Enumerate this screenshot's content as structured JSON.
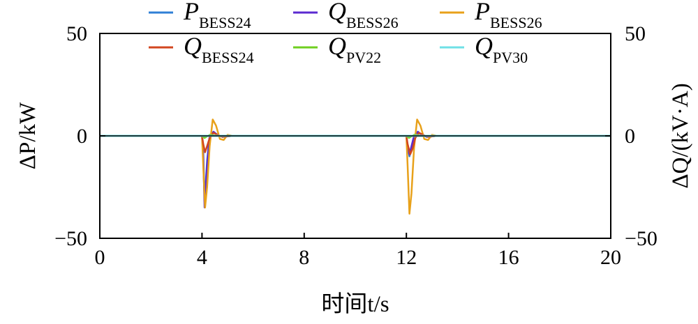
{
  "chart_data": {
    "type": "line",
    "title": "",
    "xlabel": "时间t/s",
    "ylabel_left": "ΔP/kW",
    "ylabel_right": "ΔQ/(kV·A)",
    "xlim": [
      0,
      20
    ],
    "ylim_left": [
      -50,
      50
    ],
    "ylim_right": [
      -50,
      50
    ],
    "x_ticks": [
      0,
      4,
      8,
      12,
      16,
      20
    ],
    "x_tick_labels": [
      "0",
      "4",
      "8",
      "12",
      "16",
      "20"
    ],
    "y_ticks_left": [
      -50,
      0,
      50
    ],
    "y_tick_labels_left": [
      "−50",
      "0",
      "50"
    ],
    "y_ticks_right": [
      -50,
      0,
      50
    ],
    "y_tick_labels_right": [
      "−50",
      "0",
      "50"
    ],
    "grid": false,
    "legend_position": "top",
    "series": [
      {
        "name": "P_BESS24",
        "label_main": "P",
        "label_sub": "BESS24",
        "color": "#2f7fd6",
        "points": [
          [
            0,
            0
          ],
          [
            4,
            0
          ],
          [
            4.05,
            -8
          ],
          [
            4.1,
            -32
          ],
          [
            4.2,
            -12
          ],
          [
            4.3,
            0
          ],
          [
            4.45,
            2
          ],
          [
            4.6,
            0.5
          ],
          [
            4.8,
            -0.5
          ],
          [
            5.2,
            0
          ],
          [
            12,
            0
          ],
          [
            12.05,
            -5
          ],
          [
            12.12,
            -10
          ],
          [
            12.2,
            -6
          ],
          [
            12.3,
            0
          ],
          [
            12.45,
            2
          ],
          [
            12.6,
            0.5
          ],
          [
            12.8,
            -0.5
          ],
          [
            13.2,
            0
          ],
          [
            20,
            0
          ]
        ]
      },
      {
        "name": "Q_BESS26",
        "label_main": "Q",
        "label_sub": "BESS26",
        "color": "#5b2ad0",
        "points": [
          [
            0,
            0
          ],
          [
            4,
            0
          ],
          [
            4.05,
            -10
          ],
          [
            4.1,
            -35
          ],
          [
            4.2,
            -14
          ],
          [
            4.3,
            0
          ],
          [
            4.45,
            2
          ],
          [
            4.6,
            0.5
          ],
          [
            4.8,
            -0.5
          ],
          [
            5.2,
            0
          ],
          [
            12,
            0
          ],
          [
            12.05,
            -5
          ],
          [
            12.12,
            -9
          ],
          [
            12.2,
            -5
          ],
          [
            12.3,
            0
          ],
          [
            12.45,
            2
          ],
          [
            12.6,
            0.5
          ],
          [
            12.8,
            -0.5
          ],
          [
            13.2,
            0
          ],
          [
            20,
            0
          ]
        ]
      },
      {
        "name": "P_BESS26",
        "label_main": "P",
        "label_sub": "BESS26",
        "color": "#e8a11a",
        "points": [
          [
            0,
            0
          ],
          [
            4,
            0
          ],
          [
            4.05,
            -15
          ],
          [
            4.12,
            -35
          ],
          [
            4.2,
            -25
          ],
          [
            4.3,
            -5
          ],
          [
            4.42,
            8
          ],
          [
            4.55,
            5
          ],
          [
            4.7,
            -1.5
          ],
          [
            4.85,
            -2
          ],
          [
            5,
            0.5
          ],
          [
            5.2,
            0
          ],
          [
            20,
            0
          ]
        ]
      },
      {
        "name": "Q_BESS24",
        "label_main": "Q",
        "label_sub": "BESS24",
        "color": "#d2461f",
        "points": [
          [
            0,
            0
          ],
          [
            4,
            0
          ],
          [
            4.05,
            -4
          ],
          [
            4.12,
            -8
          ],
          [
            4.2,
            -5
          ],
          [
            4.3,
            -1
          ],
          [
            4.45,
            1.5
          ],
          [
            4.6,
            0.5
          ],
          [
            4.8,
            -0.5
          ],
          [
            5.2,
            0
          ],
          [
            12,
            0
          ],
          [
            12.05,
            -4
          ],
          [
            12.15,
            -9
          ],
          [
            12.25,
            -6
          ],
          [
            12.35,
            -1
          ],
          [
            12.5,
            1.5
          ],
          [
            12.65,
            0.5
          ],
          [
            12.85,
            -0.5
          ],
          [
            13.2,
            0
          ],
          [
            20,
            0
          ]
        ]
      },
      {
        "name": "Q_PV22",
        "label_main": "Q",
        "label_sub": "PV22",
        "color": "#6fcf1f",
        "points": [
          [
            0,
            0
          ],
          [
            4,
            0
          ],
          [
            4.1,
            -1
          ],
          [
            4.3,
            0.5
          ],
          [
            4.6,
            0
          ],
          [
            12,
            0
          ],
          [
            12.1,
            -1
          ],
          [
            12.3,
            0.5
          ],
          [
            12.6,
            0
          ],
          [
            20,
            0
          ]
        ]
      },
      {
        "name": "Q_PV30",
        "label_main": "Q",
        "label_sub": "PV30",
        "color": "#6fe0e6",
        "points": [
          [
            0,
            0
          ],
          [
            20,
            0
          ]
        ]
      }
    ],
    "extra_series_p_bess26_second_event": [
      [
        12,
        0
      ],
      [
        12.05,
        -15
      ],
      [
        12.12,
        -38
      ],
      [
        12.2,
        -28
      ],
      [
        12.3,
        -6
      ],
      [
        12.42,
        8
      ],
      [
        12.55,
        5
      ],
      [
        12.7,
        -1.5
      ],
      [
        12.85,
        -2
      ],
      [
        13,
        0.5
      ],
      [
        13.2,
        0
      ]
    ]
  }
}
